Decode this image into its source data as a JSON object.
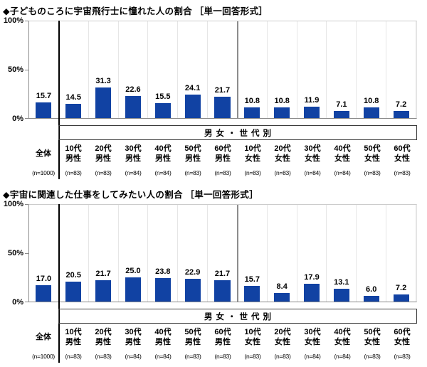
{
  "page_bg": "#ffffff",
  "colors": {
    "bar": "#1142a3",
    "axis": "#8a8a8a",
    "gridline": "#e6e6e6",
    "overall_separator": "#000000",
    "gender_separator": "#8c8c8c"
  },
  "axis": {
    "y_ticks": [
      "0%",
      "50%",
      "100%"
    ],
    "ylim": [
      0,
      100
    ]
  },
  "group_box_label": "男女・世代別",
  "categories": [
    {
      "line1": "全体",
      "line2": "",
      "n": "(n=1000)"
    },
    {
      "line1": "10代",
      "line2": "男性",
      "n": "(n=83)"
    },
    {
      "line1": "20代",
      "line2": "男性",
      "n": "(n=83)"
    },
    {
      "line1": "30代",
      "line2": "男性",
      "n": "(n=84)"
    },
    {
      "line1": "40代",
      "line2": "男性",
      "n": "(n=84)"
    },
    {
      "line1": "50代",
      "line2": "男性",
      "n": "(n=83)"
    },
    {
      "line1": "60代",
      "line2": "男性",
      "n": "(n=83)"
    },
    {
      "line1": "10代",
      "line2": "女性",
      "n": "(n=83)"
    },
    {
      "line1": "20代",
      "line2": "女性",
      "n": "(n=83)"
    },
    {
      "line1": "30代",
      "line2": "女性",
      "n": "(n=84)"
    },
    {
      "line1": "40代",
      "line2": "女性",
      "n": "(n=84)"
    },
    {
      "line1": "50代",
      "line2": "女性",
      "n": "(n=83)"
    },
    {
      "line1": "60代",
      "line2": "女性",
      "n": "(n=83)"
    }
  ],
  "chart_data": [
    {
      "type": "bar",
      "title": "◆子どものころに宇宙飛行士に憧れた人の割合 ［単一回答形式］",
      "categories": [
        "全体",
        "10代男性",
        "20代男性",
        "30代男性",
        "40代男性",
        "50代男性",
        "60代男性",
        "10代女性",
        "20代女性",
        "30代女性",
        "40代女性",
        "50代女性",
        "60代女性"
      ],
      "n_labels": [
        "(n=1000)",
        "(n=83)",
        "(n=83)",
        "(n=84)",
        "(n=84)",
        "(n=83)",
        "(n=83)",
        "(n=83)",
        "(n=83)",
        "(n=84)",
        "(n=84)",
        "(n=83)",
        "(n=83)"
      ],
      "values": [
        15.7,
        14.5,
        31.3,
        22.6,
        15.5,
        24.1,
        21.7,
        10.8,
        10.8,
        11.9,
        7.1,
        10.8,
        7.2
      ],
      "y_ticks": [
        "0%",
        "50%",
        "100%"
      ],
      "ylim": [
        0,
        100
      ],
      "group_label": "男女・世代別",
      "bar_color": "#1142a3",
      "data_labels": true,
      "legend": "none",
      "grid": "vertical-column-separators-only"
    },
    {
      "type": "bar",
      "title": "◆宇宙に関連した仕事をしてみたい人の割合 ［単一回答形式］",
      "categories": [
        "全体",
        "10代男性",
        "20代男性",
        "30代男性",
        "40代男性",
        "50代男性",
        "60代男性",
        "10代女性",
        "20代女性",
        "30代女性",
        "40代女性",
        "50代女性",
        "60代女性"
      ],
      "n_labels": [
        "(n=1000)",
        "(n=83)",
        "(n=83)",
        "(n=84)",
        "(n=84)",
        "(n=83)",
        "(n=83)",
        "(n=83)",
        "(n=83)",
        "(n=84)",
        "(n=84)",
        "(n=83)",
        "(n=83)"
      ],
      "values": [
        17.0,
        20.5,
        21.7,
        25.0,
        23.8,
        22.9,
        21.7,
        15.7,
        8.4,
        17.9,
        13.1,
        6.0,
        7.2
      ],
      "y_ticks": [
        "0%",
        "50%",
        "100%"
      ],
      "ylim": [
        0,
        100
      ],
      "group_label": "男女・世代別",
      "bar_color": "#1142a3",
      "data_labels": true,
      "legend": "none",
      "grid": "vertical-column-separators-only"
    }
  ]
}
